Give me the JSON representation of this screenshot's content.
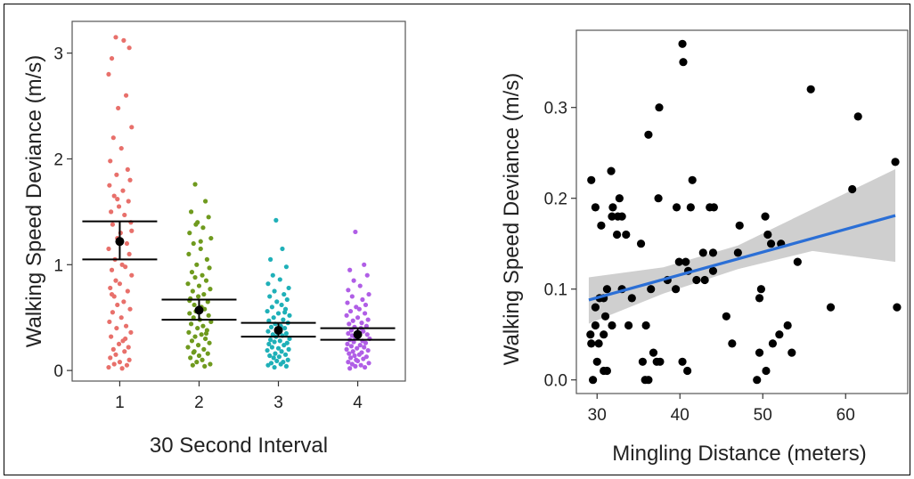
{
  "chart_data": [
    {
      "type": "scatter",
      "subtype": "jittered strip plot with mean and confidence interval",
      "xlabel": "30 Second Interval",
      "ylabel": "Walking Speed Deviance (m/s)",
      "categories": [
        "1",
        "2",
        "3",
        "4"
      ],
      "ylim": [
        -0.1,
        3.3
      ],
      "yticks": [
        "0",
        "1",
        "2",
        "3"
      ],
      "grid": false,
      "legend": "none",
      "colors": [
        "#e8706b",
        "#6f9a1e",
        "#1fb0b8",
        "#b05ee6"
      ],
      "means": [
        1.22,
        0.57,
        0.38,
        0.34
      ],
      "ci_upper": [
        1.41,
        0.67,
        0.45,
        0.4
      ],
      "ci_lower": [
        1.05,
        0.48,
        0.32,
        0.29
      ],
      "series": [
        {
          "x": [
            0.95,
            1.05,
            1.12,
            0.9,
            0.86,
            1.08,
            0.98,
            1.15,
            0.92,
            1.02,
            0.88,
            1.1,
            0.96,
            1.13,
            0.87,
            1.04,
            0.93,
            1.11,
            0.99,
            0.89,
            1.06,
            1.14,
            0.91,
            1.01,
            0.97,
            1.09,
            0.86,
            1.12,
            0.94,
            1.03,
            1.07,
            0.9,
            1.15,
            0.95,
            1.0,
            0.88,
            1.1,
            0.93,
            1.05,
            0.97,
            1.13,
            0.91,
            1.02,
            0.87,
            1.08,
            0.96,
            1.14,
            0.89,
            1.04,
            0.99,
            1.11,
            0.92,
            1.06,
            0.95,
            0.88,
            1.12,
            1.0,
            0.93,
            1.09,
            0.86,
            1.03,
            0.97,
            1.15,
            0.9,
            1.07
          ],
          "y": [
            3.15,
            3.12,
            3.05,
            2.95,
            2.8,
            2.6,
            2.48,
            2.3,
            2.2,
            2.1,
            1.98,
            1.9,
            1.85,
            1.8,
            1.75,
            1.7,
            1.65,
            1.6,
            1.55,
            1.5,
            1.47,
            1.4,
            1.38,
            1.3,
            1.25,
            1.2,
            1.15,
            1.1,
            1.05,
            1.0,
            0.98,
            0.95,
            0.9,
            0.85,
            0.82,
            0.78,
            0.75,
            0.7,
            0.65,
            0.62,
            0.58,
            0.55,
            0.5,
            0.46,
            0.42,
            0.4,
            0.36,
            0.32,
            0.28,
            0.25,
            0.22,
            0.2,
            0.18,
            0.15,
            0.12,
            0.1,
            0.08,
            0.06,
            0.05,
            0.03,
            0.02,
            1.62,
            1.32,
            0.72,
            0.3
          ]
        },
        {
          "x": [
            1.95,
            2.08,
            1.9,
            2.12,
            1.98,
            2.05,
            1.88,
            2.15,
            1.93,
            2.02,
            1.87,
            2.1,
            1.97,
            2.13,
            1.91,
            2.04,
            1.95,
            2.09,
            1.86,
            2.0,
            2.14,
            1.92,
            2.06,
            1.99,
            1.89,
            2.11,
            1.94,
            2.03,
            2.07,
            1.96,
            1.88,
            2.12,
            1.93,
            2.01,
            2.15,
            1.9,
            2.05,
            1.98,
            2.1,
            1.87,
            2.03,
            1.95,
            2.08,
            1.91,
            2.13,
            1.99,
            1.86,
            2.06,
            1.94,
            2.11,
            2.0,
            1.89,
            2.04,
            1.97,
            2.14,
            1.92,
            2.07,
            1.96,
            2.02,
            1.88,
            2.09,
            1.93
          ],
          "y": [
            1.76,
            1.6,
            1.5,
            1.45,
            1.4,
            1.35,
            1.3,
            1.25,
            1.2,
            1.15,
            1.1,
            1.05,
            1.0,
            0.97,
            0.93,
            0.9,
            0.88,
            0.85,
            0.82,
            0.8,
            0.77,
            0.75,
            0.72,
            0.7,
            0.68,
            0.65,
            0.62,
            0.6,
            0.58,
            0.56,
            0.54,
            0.52,
            0.5,
            0.48,
            0.46,
            0.44,
            0.42,
            0.4,
            0.38,
            0.36,
            0.34,
            0.32,
            0.3,
            0.28,
            0.26,
            0.24,
            0.22,
            0.2,
            0.18,
            0.16,
            0.14,
            0.12,
            0.1,
            0.08,
            0.06,
            0.05,
            0.04,
            1.38,
            1.22,
            0.66,
            0.35,
            0.17
          ]
        },
        {
          "x": [
            2.97,
            3.05,
            2.9,
            3.1,
            2.93,
            3.02,
            2.87,
            3.13,
            2.95,
            3.07,
            2.89,
            3.11,
            2.98,
            3.04,
            2.92,
            3.09,
            2.86,
            3.0,
            3.14,
            2.94,
            3.06,
            2.88,
            3.12,
            2.96,
            3.03,
            2.91,
            3.08,
            2.99,
            2.87,
            3.1,
            2.93,
            3.05,
            2.97,
            3.14,
            2.9,
            3.02,
            2.95,
            3.11,
            2.88,
            3.07,
            2.92,
            3.0,
            3.13,
            2.86,
            3.04,
            2.96,
            3.09,
            2.89,
            3.01,
            2.94,
            3.12,
            2.98,
            3.06,
            2.91,
            3.03,
            2.87,
            3.1,
            2.95,
            3.08,
            2.99
          ],
          "y": [
            1.42,
            1.15,
            1.05,
            0.98,
            0.9,
            0.86,
            0.82,
            0.78,
            0.75,
            0.72,
            0.7,
            0.67,
            0.65,
            0.62,
            0.6,
            0.58,
            0.56,
            0.54,
            0.52,
            0.5,
            0.48,
            0.47,
            0.45,
            0.44,
            0.42,
            0.41,
            0.4,
            0.38,
            0.37,
            0.35,
            0.34,
            0.33,
            0.32,
            0.3,
            0.29,
            0.28,
            0.27,
            0.26,
            0.25,
            0.24,
            0.22,
            0.21,
            0.2,
            0.19,
            0.18,
            0.16,
            0.15,
            0.14,
            0.13,
            0.12,
            0.1,
            0.09,
            0.08,
            0.07,
            0.06,
            0.05,
            0.04,
            0.03,
            0.55,
            0.36
          ]
        },
        {
          "x": [
            3.97,
            4.08,
            3.9,
            4.12,
            3.95,
            4.03,
            3.88,
            4.14,
            3.93,
            4.06,
            3.87,
            4.1,
            3.98,
            4.02,
            3.91,
            4.09,
            3.86,
            4.0,
            4.13,
            3.94,
            4.05,
            3.89,
            4.11,
            3.96,
            4.04,
            3.92,
            4.07,
            3.99,
            3.88,
            4.12,
            3.93,
            4.01,
            3.97,
            4.15,
            3.9,
            4.06,
            3.95,
            4.1,
            3.87,
            4.03,
            3.92,
            4.08,
            3.99,
            3.86,
            4.13,
            3.94,
            4.05,
            3.89,
            4.02,
            3.96,
            4.11,
            3.91,
            4.07,
            3.98,
            4.0,
            3.88,
            4.14,
            3.93,
            4.04,
            3.97,
            4.09,
            3.9
          ],
          "y": [
            1.31,
            1.0,
            0.95,
            0.9,
            0.85,
            0.8,
            0.76,
            0.72,
            0.7,
            0.67,
            0.64,
            0.62,
            0.6,
            0.58,
            0.56,
            0.54,
            0.52,
            0.5,
            0.48,
            0.47,
            0.45,
            0.44,
            0.42,
            0.41,
            0.4,
            0.38,
            0.37,
            0.36,
            0.35,
            0.34,
            0.33,
            0.32,
            0.31,
            0.3,
            0.29,
            0.28,
            0.27,
            0.26,
            0.25,
            0.24,
            0.23,
            0.22,
            0.21,
            0.2,
            0.19,
            0.18,
            0.17,
            0.16,
            0.15,
            0.14,
            0.13,
            0.12,
            0.11,
            0.1,
            0.09,
            0.08,
            0.07,
            0.06,
            0.05,
            0.04,
            0.03,
            0.02
          ]
        }
      ]
    },
    {
      "type": "scatter",
      "subtype": "scatter with linear fit and confidence band",
      "xlabel": "Mingling Distance (meters)",
      "ylabel": "Walking Speed Deviance (m/s)",
      "xlim": [
        27.5,
        67.5
      ],
      "ylim": [
        -0.015,
        0.385
      ],
      "xticks": [
        "30",
        "40",
        "50",
        "60"
      ],
      "yticks": [
        "0.0",
        "0.1",
        "0.2",
        "0.3"
      ],
      "grid": false,
      "legend": "none",
      "point_color": "#000000",
      "fit_color": "#2b6fd6",
      "band_color": "#cccccc",
      "fit": {
        "x": [
          29,
          66
        ],
        "y": [
          0.088,
          0.181
        ]
      },
      "band_upper": {
        "x": [
          29,
          38,
          47,
          56,
          66
        ],
        "y": [
          0.113,
          0.124,
          0.148,
          0.188,
          0.232
        ]
      },
      "band_lower": {
        "x": [
          29,
          38,
          47,
          56,
          66
        ],
        "y": [
          0.062,
          0.095,
          0.122,
          0.142,
          0.13
        ]
      },
      "points": {
        "x": [
          40.3,
          40.4,
          37.5,
          55.8,
          61.5,
          36.2,
          29.3,
          66.0,
          41.5,
          31.7,
          29.8,
          32.7,
          37.4,
          60.8,
          31.9,
          31.8,
          39.6,
          44.1,
          43.6,
          41.3,
          33.0,
          32.5,
          30.5,
          47.2,
          32.4,
          33.5,
          44.0,
          35.3,
          42.8,
          50.6,
          52.2,
          51.0,
          54.2,
          39.9,
          40.7,
          44.0,
          43.0,
          42.0,
          41.0,
          39.5,
          38.5,
          36.5,
          47.0,
          50.3,
          33.0,
          29.8,
          30.3,
          30.8,
          31.2,
          34.2,
          29.2,
          29.8,
          58.2,
          66.2,
          49.8,
          49.6,
          45.6,
          53.0,
          52.0,
          51.2,
          49.6,
          46.3,
          31.0,
          31.8,
          30.2,
          30.8,
          29.3,
          33.8,
          35.9,
          35.5,
          36.8,
          37.6,
          37.2,
          40.3,
          40.9,
          50.4,
          53.5,
          49.3,
          29.5,
          30.8,
          31.2,
          30.0,
          36.2,
          35.8
        ],
        "y": [
          0.37,
          0.35,
          0.3,
          0.32,
          0.29,
          0.27,
          0.22,
          0.24,
          0.22,
          0.23,
          0.19,
          0.2,
          0.2,
          0.21,
          0.19,
          0.18,
          0.19,
          0.19,
          0.19,
          0.19,
          0.18,
          0.18,
          0.17,
          0.17,
          0.16,
          0.16,
          0.14,
          0.15,
          0.14,
          0.16,
          0.15,
          0.15,
          0.13,
          0.13,
          0.13,
          0.12,
          0.11,
          0.11,
          0.12,
          0.1,
          0.11,
          0.1,
          0.14,
          0.18,
          0.1,
          0.08,
          0.09,
          0.09,
          0.1,
          0.09,
          0.05,
          0.06,
          0.08,
          0.08,
          0.1,
          0.09,
          0.07,
          0.06,
          0.05,
          0.04,
          0.03,
          0.04,
          0.07,
          0.06,
          0.04,
          0.05,
          0.04,
          0.06,
          0.06,
          0.02,
          0.03,
          0.02,
          0.02,
          0.02,
          0.01,
          0.01,
          0.03,
          0.0,
          0.0,
          0.01,
          0.01,
          0.02,
          0.0,
          0.0
        ]
      }
    }
  ]
}
